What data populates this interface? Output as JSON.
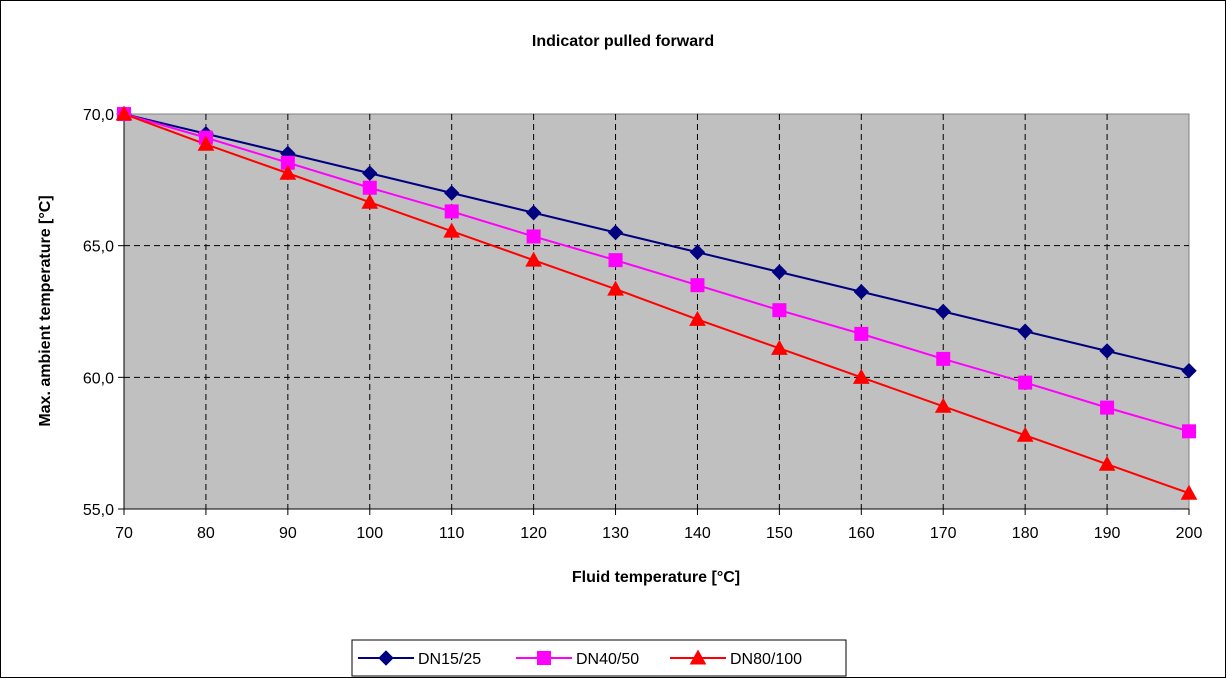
{
  "chart_data": {
    "type": "line",
    "title": "Indicator pulled forward",
    "xlabel": "Fluid temperature [°C]",
    "ylabel": "Max. ambient temperature [°C]",
    "x": [
      70,
      80,
      90,
      100,
      110,
      120,
      130,
      140,
      150,
      160,
      170,
      180,
      190,
      200
    ],
    "x_tick_labels": [
      "70",
      "80",
      "90",
      "100",
      "110",
      "120",
      "130",
      "140",
      "150",
      "160",
      "170",
      "180",
      "190",
      "200"
    ],
    "y_tick_labels": [
      "70,0",
      "65,0",
      "60,0",
      "55,0"
    ],
    "y_ticks": [
      70,
      65,
      60,
      55
    ],
    "xlim": [
      70,
      200
    ],
    "ylim": [
      55,
      70
    ],
    "grid": true,
    "plot_background": "#c0c0c0",
    "legend_position": "bottom",
    "series": [
      {
        "name": "DN15/25",
        "color": "#000080",
        "marker": "diamond",
        "values": [
          70.0,
          69.25,
          68.5,
          67.75,
          67.0,
          66.25,
          65.5,
          64.75,
          64.0,
          63.25,
          62.5,
          61.75,
          61.0,
          60.25
        ]
      },
      {
        "name": "DN40/50",
        "color": "#ff00ff",
        "marker": "square",
        "values": [
          70.0,
          69.1,
          68.15,
          67.2,
          66.3,
          65.35,
          64.45,
          63.5,
          62.55,
          61.65,
          60.7,
          59.8,
          58.85,
          57.95
        ]
      },
      {
        "name": "DN80/100",
        "color": "#ff0000",
        "marker": "triangle",
        "values": [
          70.0,
          68.85,
          67.75,
          66.65,
          65.55,
          64.45,
          63.35,
          62.2,
          61.1,
          60.0,
          58.9,
          57.8,
          56.7,
          55.6
        ]
      }
    ]
  }
}
